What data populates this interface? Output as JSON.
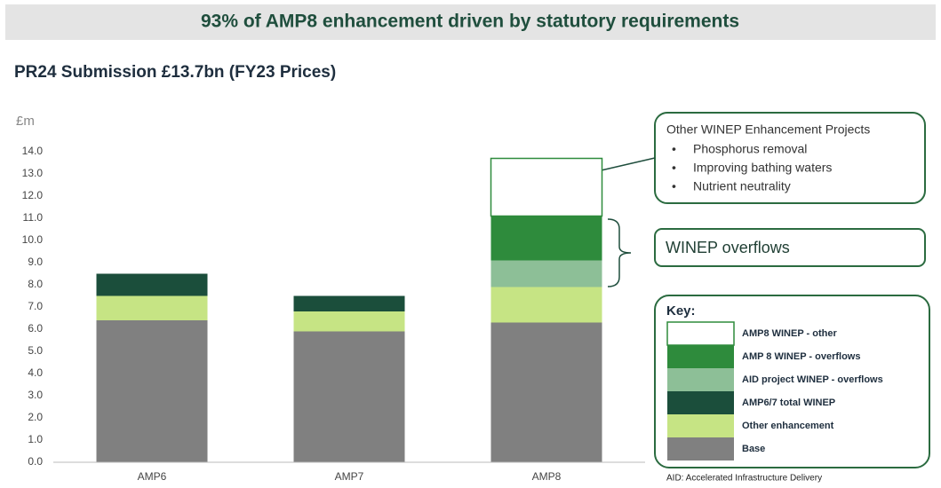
{
  "chart_data": {
    "type": "stacked_bar",
    "title": "93% of AMP8 enhancement driven by statutory requirements",
    "subtitle": "PR24 Submission £13.7bn (FY23 Prices)",
    "y_label": "£m",
    "categories": [
      "AMP6",
      "AMP7",
      "AMP8"
    ],
    "series": [
      {
        "name": "Base",
        "color": "#808080",
        "values": [
          6.4,
          5.9,
          6.3
        ]
      },
      {
        "name": "Other enhancement",
        "color": "#c6e484",
        "values": [
          1.1,
          0.9,
          1.6
        ]
      },
      {
        "name": "AMP6/7 total WINEP",
        "color": "#1b4e3b",
        "values": [
          1.0,
          0.7,
          null
        ]
      },
      {
        "name": "AID project WINEP - overflows",
        "color": "#8dbf97",
        "values": [
          null,
          null,
          1.2
        ]
      },
      {
        "name": "AMP 8 WINEP - overflows",
        "color": "#2e8b3c",
        "values": [
          null,
          null,
          2.0
        ]
      },
      {
        "name": "AMP8 WINEP - other",
        "color": "#ffffff",
        "values": [
          null,
          null,
          2.6
        ]
      }
    ],
    "ylim": [
      0,
      14
    ],
    "yticks": [
      {
        "value": 0,
        "label": "0.0"
      },
      {
        "value": 1,
        "label": "1.0"
      },
      {
        "value": 2,
        "label": "2.0"
      },
      {
        "value": 3,
        "label": "3.0"
      },
      {
        "value": 4,
        "label": "4.0"
      },
      {
        "value": 5,
        "label": "5.0"
      },
      {
        "value": 6,
        "label": "6.0"
      },
      {
        "value": 7,
        "label": "7.0"
      },
      {
        "value": 8,
        "label": "8.0"
      },
      {
        "value": 9,
        "label": "9.0"
      },
      {
        "value": 10,
        "label": "10.0"
      },
      {
        "value": 11,
        "label": "11.0"
      },
      {
        "value": 12,
        "label": "12.0"
      },
      {
        "value": 13,
        "label": "13.0"
      },
      {
        "value": 14,
        "label": "14.0"
      }
    ],
    "grid": false,
    "callout_title": "Other WINEP Enhancement Projects",
    "callout_items": [
      "Phosphorus removal",
      "Improving bathing waters",
      "Nutrient neutrality"
    ],
    "bracket_label": "WINEP overflows",
    "legend_title": "Key:",
    "footnote": "AID: Accelerated Infrastructure Delivery"
  }
}
